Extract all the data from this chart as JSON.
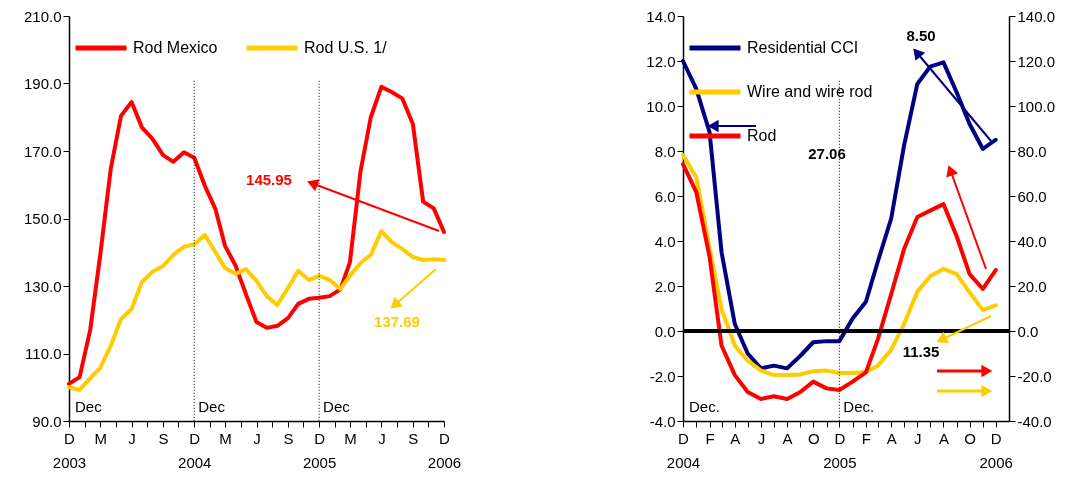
{
  "chart_data": [
    {
      "type": "line",
      "legend": "top left",
      "x": [
        "2003-12",
        "2004-01",
        "2004-02",
        "2004-03",
        "2004-04",
        "2004-05",
        "2004-06",
        "2004-07",
        "2004-08",
        "2004-09",
        "2004-10",
        "2004-11",
        "2004-12",
        "2005-01",
        "2005-02",
        "2005-03",
        "2005-04",
        "2005-05",
        "2005-06",
        "2005-07",
        "2005-08",
        "2005-09",
        "2005-10",
        "2005-11",
        "2005-12",
        "2006-01",
        "2006-02",
        "2006-03",
        "2006-04",
        "2006-05",
        "2006-06",
        "2006-07",
        "2006-08",
        "2006-09",
        "2006-10",
        "2006-11",
        "2006-12"
      ],
      "series": [
        {
          "name": "Rod Mexico",
          "color": "#ff0000",
          "values": [
            101,
            103,
            117,
            139,
            164.7,
            180.4,
            184.5,
            177,
            173.6,
            168.8,
            166.8,
            169.6,
            168,
            159.7,
            152.8,
            141.9,
            136,
            127.6,
            119.3,
            117.6,
            118.2,
            120.5,
            124.7,
            126.2,
            126.5,
            127,
            129,
            137,
            164,
            180,
            189,
            187.5,
            185.6,
            178,
            155,
            153,
            146
          ]
        },
        {
          "name": "Rod U.S. 1/",
          "color": "#ffcc00",
          "values": [
            100,
            99.2,
            102.7,
            105.7,
            112.3,
            120.2,
            123.2,
            131.2,
            134.2,
            135.9,
            139.2,
            141.6,
            142.4,
            145.1,
            140,
            135.3,
            133.6,
            135,
            131.5,
            127,
            124.4,
            129.4,
            134.5,
            131.8,
            133,
            131.8,
            129.1,
            133,
            136.8,
            139.2,
            146.3,
            143,
            141,
            138.6,
            137.7,
            137.9,
            137.7
          ]
        }
      ],
      "xlim": [
        "2003-12",
        "2006-12"
      ],
      "xticks": [
        {
          "value": "2003-12",
          "label": "D\n2003"
        },
        {
          "value": "2004-01-16",
          "label": null
        },
        {
          "value": "2004-03",
          "label": "M"
        },
        {
          "value": "2004-04-16",
          "label": null
        },
        {
          "value": "2004-06",
          "label": "J"
        },
        {
          "value": "2004-07-16",
          "label": null
        },
        {
          "value": "2004-09",
          "label": "S"
        },
        {
          "value": "2004-10-16",
          "label": null
        },
        {
          "value": "2004-12",
          "label": "D\n2004"
        },
        {
          "value": "2005-01-16",
          "label": null
        },
        {
          "value": "2005-03",
          "label": "M"
        },
        {
          "value": "2005-04-16",
          "label": null
        },
        {
          "value": "2005-06",
          "label": "J"
        },
        {
          "value": "2005-07-16",
          "label": null
        },
        {
          "value": "2005-09",
          "label": "S"
        },
        {
          "value": "2005-10-16",
          "label": null
        },
        {
          "value": "2005-12",
          "label": "D\n2005"
        },
        {
          "value": "2006-01-16",
          "label": null
        },
        {
          "value": "2006-03",
          "label": "M"
        },
        {
          "value": "2006-04-16",
          "label": null
        },
        {
          "value": "2006-06",
          "label": "J"
        },
        {
          "value": "2006-07-16",
          "label": null
        },
        {
          "value": "2006-09",
          "label": "S"
        },
        {
          "value": "2006-10-16",
          "label": null
        },
        {
          "value": "2006-12",
          "label": "D\n2006"
        }
      ],
      "ylim": [
        90,
        210
      ],
      "yticks": [
        {
          "value": 90,
          "label": "90.0"
        },
        {
          "value": 110,
          "label": "110.0"
        },
        {
          "value": 130,
          "label": "130.0"
        },
        {
          "value": 150,
          "label": "150.0"
        },
        {
          "value": 170,
          "label": "170.0"
        },
        {
          "value": 190,
          "label": "190.0"
        },
        {
          "value": 210,
          "label": "210.0"
        }
      ],
      "ref_lines": [
        {
          "axis": "x",
          "value": "2004-12",
          "label": "Dec",
          "line_style": "dotted",
          "color": "#000000"
        },
        {
          "axis": "x",
          "value": "2005-12",
          "label": "Dec",
          "line_style": "dotted",
          "color": "#000000"
        }
      ],
      "annotations": [
        "Dec",
        "145.95",
        "137.69"
      ]
    },
    {
      "type": "line",
      "legend": "top left",
      "x": [
        "2004-12",
        "2005-01",
        "2005-02",
        "2005-03",
        "2005-04",
        "2005-05",
        "2005-06",
        "2005-07",
        "2005-08",
        "2005-09",
        "2005-10",
        "2005-11",
        "2005-12",
        "2006-01",
        "2006-02",
        "2006-03",
        "2006-04",
        "2006-05",
        "2006-06",
        "2006-07",
        "2006-08",
        "2006-09",
        "2006-10",
        "2006-11",
        "2006-12"
      ],
      "series": [
        {
          "name": "Residential CCI",
          "color": "#000080",
          "axis": "y",
          "values": [
            12.0,
            10.76,
            8.84,
            3.5,
            0.31,
            -1.0,
            -1.66,
            -1.54,
            -1.66,
            -1.1,
            -0.5,
            -0.45,
            -0.45,
            0.56,
            1.3,
            3.1,
            5.0,
            8.24,
            10.98,
            11.75,
            11.94,
            10.6,
            9.2,
            8.09,
            8.5
          ]
        },
        {
          "name": "Wire and wire rod",
          "color": "#ffcc00",
          "axis": "y2",
          "values": [
            78.2,
            68.4,
            37,
            9.8,
            -6.5,
            -13.2,
            -17.6,
            -19.6,
            -19.6,
            -19.3,
            -17.9,
            -17.6,
            -18.7,
            -18.7,
            -18.2,
            -15.4,
            -8.3,
            3.1,
            17.5,
            24.3,
            27.6,
            25.3,
            17.2,
            9.3,
            11.4
          ]
        },
        {
          "name": "Rod",
          "color": "#ff0000",
          "axis": "y2",
          "values": [
            74.2,
            61.7,
            33,
            -6.5,
            -19.6,
            -27.1,
            -30.2,
            -29,
            -30.2,
            -27.1,
            -22.5,
            -25.5,
            -26.2,
            -22.5,
            -18.4,
            -3.6,
            16.4,
            36.4,
            50.7,
            53.5,
            56.4,
            42,
            25.3,
            18.7,
            27.1
          ]
        }
      ],
      "xlim": [
        "2004-12",
        "2007-01"
      ],
      "xticks": [
        {
          "value": "2004-12",
          "label": "D\n2004"
        },
        {
          "value": "2005-01",
          "label": null
        },
        {
          "value": "2005-02",
          "label": "F"
        },
        {
          "value": "2005-03",
          "label": null
        },
        {
          "value": "2005-04",
          "label": "A"
        },
        {
          "value": "2005-05",
          "label": null
        },
        {
          "value": "2005-06",
          "label": "J"
        },
        {
          "value": "2005-07",
          "label": null
        },
        {
          "value": "2005-08",
          "label": "A"
        },
        {
          "value": "2005-09",
          "label": null
        },
        {
          "value": "2005-10",
          "label": "O"
        },
        {
          "value": "2005-11",
          "label": null
        },
        {
          "value": "2005-12",
          "label": "D\n2005"
        },
        {
          "value": "2006-01",
          "label": null
        },
        {
          "value": "2006-02",
          "label": "F"
        },
        {
          "value": "2006-03",
          "label": null
        },
        {
          "value": "2006-04",
          "label": "A"
        },
        {
          "value": "2006-05",
          "label": null
        },
        {
          "value": "2006-06",
          "label": "J"
        },
        {
          "value": "2006-07",
          "label": null
        },
        {
          "value": "2006-08",
          "label": "A"
        },
        {
          "value": "2006-09",
          "label": null
        },
        {
          "value": "2006-10",
          "label": "O"
        },
        {
          "value": "2006-11",
          "label": null
        },
        {
          "value": "2006-12",
          "label": "D\n2006"
        }
      ],
      "ylim": [
        -4,
        14
      ],
      "yticks": [
        {
          "value": -4,
          "label": "-4.0"
        },
        {
          "value": -2,
          "label": "-2.0"
        },
        {
          "value": 0,
          "label": "0.0"
        },
        {
          "value": 2,
          "label": "2.0"
        },
        {
          "value": 4,
          "label": "4.0"
        },
        {
          "value": 6,
          "label": "6.0"
        },
        {
          "value": 8,
          "label": "8.0"
        },
        {
          "value": 10,
          "label": "10.0"
        },
        {
          "value": 12,
          "label": "12.0"
        },
        {
          "value": 14,
          "label": "14.0"
        }
      ],
      "y2lim": [
        -40,
        140
      ],
      "y2ticks": [
        {
          "value": -40,
          "label": "-40.0"
        },
        {
          "value": -20,
          "label": "-20.0"
        },
        {
          "value": 0,
          "label": "0.0"
        },
        {
          "value": 20,
          "label": "20.0"
        },
        {
          "value": 40,
          "label": "40.0"
        },
        {
          "value": 60,
          "label": "60.0"
        },
        {
          "value": 80,
          "label": "80.0"
        },
        {
          "value": 100,
          "label": "100.0"
        },
        {
          "value": 120,
          "label": "120.0"
        },
        {
          "value": 140,
          "label": "140.0"
        }
      ],
      "ref_lines": [
        {
          "axis": "y",
          "value": 0,
          "color": "#000000",
          "line_style": "solid"
        },
        {
          "axis": "x",
          "value": "2005-12",
          "label": "Dec.",
          "line_style": "dotted",
          "color": "#000000"
        }
      ],
      "annotations": [
        "Dec.",
        "8.50",
        "27.06",
        "11.35"
      ]
    }
  ]
}
